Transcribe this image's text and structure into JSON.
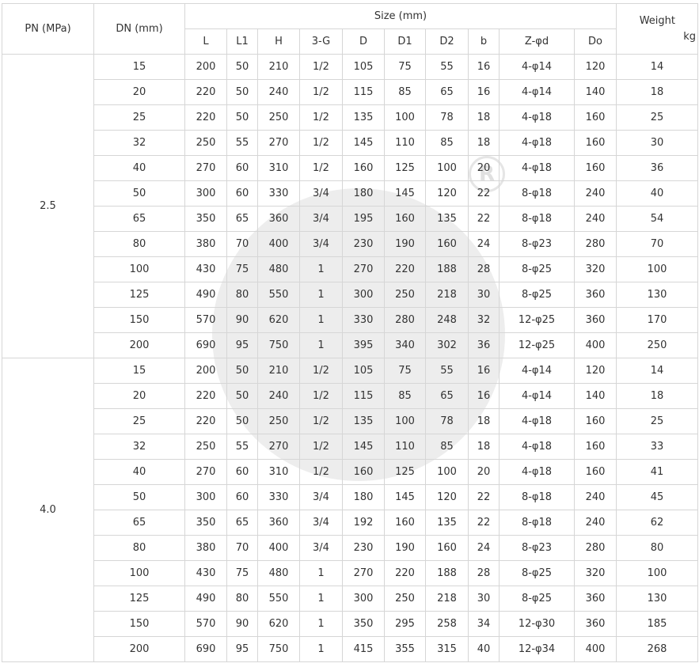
{
  "headers": {
    "pn": "PN (MPa)",
    "dn": "DN (mm)",
    "size": "Size (mm)",
    "weight": "Weight",
    "weight_unit": "kg",
    "sub": [
      "L",
      "L1",
      "H",
      "3-G",
      "D",
      "D1",
      "D2",
      "b",
      "Z-φd",
      "Do"
    ]
  },
  "groups": [
    {
      "pn": "2.5",
      "rows": [
        [
          "15",
          "200",
          "50",
          "210",
          "1/2",
          "105",
          "75",
          "55",
          "16",
          "4-φ14",
          "120",
          "14"
        ],
        [
          "20",
          "220",
          "50",
          "240",
          "1/2",
          "115",
          "85",
          "65",
          "16",
          "4-φ14",
          "140",
          "18"
        ],
        [
          "25",
          "220",
          "50",
          "250",
          "1/2",
          "135",
          "100",
          "78",
          "18",
          "4-φ18",
          "160",
          "25"
        ],
        [
          "32",
          "250",
          "55",
          "270",
          "1/2",
          "145",
          "110",
          "85",
          "18",
          "4-φ18",
          "160",
          "30"
        ],
        [
          "40",
          "270",
          "60",
          "310",
          "1/2",
          "160",
          "125",
          "100",
          "20",
          "4-φ18",
          "160",
          "36"
        ],
        [
          "50",
          "300",
          "60",
          "330",
          "3/4",
          "180",
          "145",
          "120",
          "22",
          "8-φ18",
          "240",
          "40"
        ],
        [
          "65",
          "350",
          "65",
          "360",
          "3/4",
          "195",
          "160",
          "135",
          "22",
          "8-φ18",
          "240",
          "54"
        ],
        [
          "80",
          "380",
          "70",
          "400",
          "3/4",
          "230",
          "190",
          "160",
          "24",
          "8-φ23",
          "280",
          "70"
        ],
        [
          "100",
          "430",
          "75",
          "480",
          "1",
          "270",
          "220",
          "188",
          "28",
          "8-φ25",
          "320",
          "100"
        ],
        [
          "125",
          "490",
          "80",
          "550",
          "1",
          "300",
          "250",
          "218",
          "30",
          "8-φ25",
          "360",
          "130"
        ],
        [
          "150",
          "570",
          "90",
          "620",
          "1",
          "330",
          "280",
          "248",
          "32",
          "12-φ25",
          "360",
          "170"
        ],
        [
          "200",
          "690",
          "95",
          "750",
          "1",
          "395",
          "340",
          "302",
          "36",
          "12-φ25",
          "400",
          "250"
        ]
      ]
    },
    {
      "pn": "4.0",
      "rows": [
        [
          "15",
          "200",
          "50",
          "210",
          "1/2",
          "105",
          "75",
          "55",
          "16",
          "4-φ14",
          "120",
          "14"
        ],
        [
          "20",
          "220",
          "50",
          "240",
          "1/2",
          "115",
          "85",
          "65",
          "16",
          "4-φ14",
          "140",
          "18"
        ],
        [
          "25",
          "220",
          "50",
          "250",
          "1/2",
          "135",
          "100",
          "78",
          "18",
          "4-φ18",
          "160",
          "25"
        ],
        [
          "32",
          "250",
          "55",
          "270",
          "1/2",
          "145",
          "110",
          "85",
          "18",
          "4-φ18",
          "160",
          "33"
        ],
        [
          "40",
          "270",
          "60",
          "310",
          "1/2",
          "160",
          "125",
          "100",
          "20",
          "4-φ18",
          "160",
          "41"
        ],
        [
          "50",
          "300",
          "60",
          "330",
          "3/4",
          "180",
          "145",
          "120",
          "22",
          "8-φ18",
          "240",
          "45"
        ],
        [
          "65",
          "350",
          "65",
          "360",
          "3/4",
          "192",
          "160",
          "135",
          "22",
          "8-φ18",
          "240",
          "62"
        ],
        [
          "80",
          "380",
          "70",
          "400",
          "3/4",
          "230",
          "190",
          "160",
          "24",
          "8-φ23",
          "280",
          "80"
        ],
        [
          "100",
          "430",
          "75",
          "480",
          "1",
          "270",
          "220",
          "188",
          "28",
          "8-φ25",
          "320",
          "100"
        ],
        [
          "125",
          "490",
          "80",
          "550",
          "1",
          "300",
          "250",
          "218",
          "30",
          "8-φ25",
          "360",
          "130"
        ],
        [
          "150",
          "570",
          "90",
          "620",
          "1",
          "350",
          "295",
          "258",
          "34",
          "12-φ30",
          "360",
          "185"
        ],
        [
          "200",
          "690",
          "95",
          "750",
          "1",
          "415",
          "355",
          "315",
          "40",
          "12-φ34",
          "400",
          "268"
        ]
      ]
    }
  ]
}
